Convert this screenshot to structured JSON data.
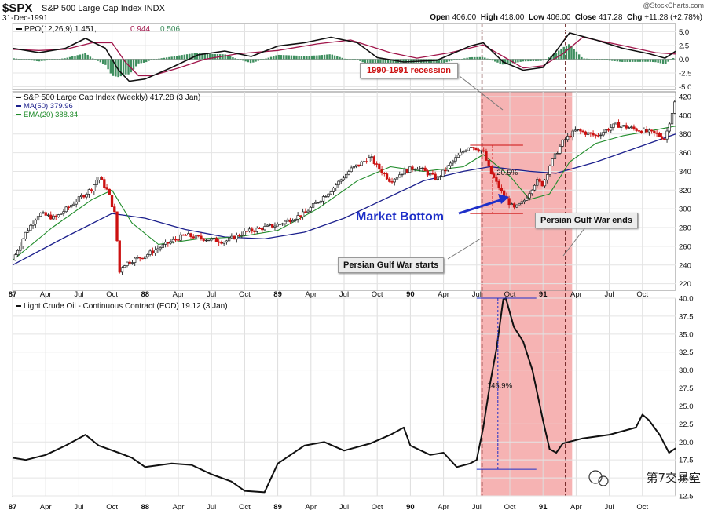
{
  "header": {
    "symbol": "$SPX",
    "name": "S&P 500 Large Cap Index INDX",
    "date": "31-Dec-1991",
    "copyright": "@StockCharts.com",
    "open_label": "Open",
    "open": "406.00",
    "high_label": "High",
    "high": "418.00",
    "low_label": "Low",
    "low": "406.00",
    "close_label": "Close",
    "close": "417.28",
    "chg_label": "Chg",
    "chg": "+11.28 (+2.78%)"
  },
  "annotations": {
    "recession": "1990-1991 recession",
    "market_bottom": "Market Bottom",
    "war_starts": "Persian Gulf War starts",
    "war_ends": "Persian Gulf War ends",
    "drop_pct": "-20.5%",
    "oil_rise_pct": "146.9%",
    "watermark": "第7交易室"
  },
  "colors": {
    "recession_fill": "#f4a6a6",
    "candle_up": "#222222",
    "candle_down": "#cc1111",
    "ma50": "#1b1f8c",
    "ema20": "#1f8c2a",
    "ppo": "#111111",
    "ppo_signal": "#a0154a",
    "histogram": "#3e8e5e",
    "arrow": "#1e2fc8",
    "oil": "#111111"
  },
  "x_axis": [
    "87",
    "Apr",
    "Jul",
    "Oct",
    "88",
    "Apr",
    "Jul",
    "Oct",
    "89",
    "Apr",
    "Jul",
    "Oct",
    "90",
    "Apr",
    "Jul",
    "Oct",
    "91",
    "Apr",
    "Jul",
    "Oct"
  ],
  "chart_data": [
    {
      "type": "line",
      "title": "PPO(12,26,9) 1.451, 0.944, 0.506",
      "legend": [
        {
          "label": "PPO(12,26,9)",
          "value": "1.451"
        },
        {
          "label": "",
          "value": "0.944"
        },
        {
          "label": "",
          "value": "0.506"
        }
      ],
      "ylim": [
        -5.5,
        6.5
      ],
      "yticks": [
        "5.0",
        "2.5",
        "0.0",
        "-2.5",
        "-5.0"
      ],
      "series": [
        {
          "name": "PPO",
          "x": [
            1987.0,
            1987.2,
            1987.4,
            1987.55,
            1987.7,
            1987.8,
            1987.88,
            1988.0,
            1988.2,
            1988.4,
            1988.6,
            1988.8,
            1989.0,
            1989.2,
            1989.4,
            1989.6,
            1989.75,
            1989.95,
            1990.2,
            1990.45,
            1990.55,
            1990.7,
            1990.85,
            1991.0,
            1991.1,
            1991.2,
            1991.4,
            1991.6,
            1991.8,
            1991.92,
            1992.0
          ],
          "values": [
            2.0,
            1.2,
            2.0,
            3.8,
            2.0,
            -2.0,
            -4.0,
            -3.6,
            -1.5,
            0.8,
            1.5,
            0.5,
            2.4,
            3.0,
            4.0,
            3.0,
            0.3,
            -0.5,
            -0.2,
            2.4,
            3.0,
            -0.5,
            -2.0,
            -1.5,
            1.5,
            4.8,
            3.5,
            2.0,
            1.0,
            0.2,
            1.451
          ]
        },
        {
          "name": "Signal",
          "x": [
            1987.0,
            1987.2,
            1987.4,
            1987.6,
            1987.75,
            1987.85,
            1987.95,
            1988.05,
            1988.25,
            1988.45,
            1988.7,
            1989.0,
            1989.3,
            1989.55,
            1989.85,
            1990.05,
            1990.3,
            1990.55,
            1990.7,
            1990.85,
            1991.0,
            1991.15,
            1991.3,
            1991.6,
            1991.85,
            1992.0
          ],
          "values": [
            1.8,
            1.6,
            1.8,
            3.0,
            3.0,
            -0.5,
            -3.0,
            -3.0,
            -1.6,
            0.0,
            1.0,
            1.6,
            2.8,
            3.5,
            1.2,
            0.2,
            1.2,
            2.6,
            0.5,
            -1.6,
            -1.2,
            1.0,
            4.0,
            2.5,
            1.2,
            0.944
          ]
        }
      ],
      "histogram_last": "0.506"
    },
    {
      "type": "candlestick",
      "title": "S&P 500 Large Cap Index (Weekly) 417.28 (3 Jan)",
      "legend": [
        {
          "label": "MA(50)",
          "value": "379.96"
        },
        {
          "label": "EMA(20)",
          "value": "388.34"
        }
      ],
      "ylim": [
        213,
        425
      ],
      "yticks": [
        "420",
        "400",
        "380",
        "360",
        "340",
        "320",
        "300",
        "280",
        "260",
        "240",
        "220"
      ],
      "close_x": [
        1987.0,
        1987.1,
        1987.2,
        1987.32,
        1987.45,
        1987.6,
        1987.65,
        1987.72,
        1987.78,
        1987.8,
        1987.83,
        1987.9,
        1988.0,
        1988.15,
        1988.3,
        1988.45,
        1988.6,
        1988.75,
        1988.9,
        1989.0,
        1989.2,
        1989.4,
        1989.55,
        1989.7,
        1989.75,
        1989.85,
        1989.95,
        1990.05,
        1990.2,
        1990.35,
        1990.45,
        1990.55,
        1990.6,
        1990.7,
        1990.78,
        1990.85,
        1990.95,
        1991.0,
        1991.05,
        1991.15,
        1991.25,
        1991.4,
        1991.55,
        1991.7,
        1991.85,
        1991.92,
        1992.0
      ],
      "close": [
        245,
        275,
        295,
        290,
        305,
        322,
        335,
        318,
        290,
        230,
        240,
        245,
        250,
        262,
        272,
        268,
        265,
        275,
        280,
        283,
        295,
        320,
        342,
        355,
        345,
        330,
        340,
        345,
        332,
        355,
        368,
        361,
        340,
        315,
        300,
        307,
        330,
        326,
        346,
        372,
        384,
        378,
        390,
        385,
        380,
        375,
        417.28
      ],
      "ma50_x": [
        1987.0,
        1987.4,
        1987.75,
        1988.0,
        1988.3,
        1988.6,
        1988.9,
        1989.2,
        1989.5,
        1989.8,
        1990.1,
        1990.4,
        1990.6,
        1990.9,
        1991.1,
        1991.4,
        1991.7,
        1992.0
      ],
      "ma50": [
        240,
        270,
        295,
        290,
        278,
        270,
        268,
        275,
        290,
        310,
        330,
        340,
        345,
        340,
        338,
        350,
        365,
        379.96
      ],
      "ema20_x": [
        1987.0,
        1987.3,
        1987.6,
        1987.75,
        1987.9,
        1988.1,
        1988.4,
        1988.7,
        1989.0,
        1989.3,
        1989.6,
        1989.85,
        1990.1,
        1990.4,
        1990.55,
        1990.75,
        1990.9,
        1991.05,
        1991.2,
        1991.4,
        1991.6,
        1991.8,
        1992.0
      ],
      "ema20": [
        245,
        280,
        310,
        320,
        285,
        262,
        268,
        270,
        277,
        300,
        330,
        345,
        340,
        345,
        358,
        335,
        310,
        316,
        350,
        370,
        378,
        383,
        388.34
      ]
    },
    {
      "type": "line",
      "title": "Light Crude Oil - Continuous Contract (EOD) 19.12 (3 Jan)",
      "ylim": [
        12.5,
        40.0
      ],
      "yticks": [
        "40.0",
        "37.5",
        "35.0",
        "32.5",
        "30.0",
        "27.5",
        "25.0",
        "22.5",
        "20.0",
        "17.5",
        "15.0",
        "12.5"
      ],
      "series": [
        {
          "name": "Light Crude Oil",
          "x": [
            1987.0,
            1987.1,
            1987.25,
            1987.4,
            1987.55,
            1987.65,
            1987.8,
            1987.9,
            1988.0,
            1988.2,
            1988.35,
            1988.5,
            1988.65,
            1988.75,
            1988.9,
            1989.0,
            1989.2,
            1989.35,
            1989.5,
            1989.7,
            1989.85,
            1989.95,
            1990.0,
            1990.15,
            1990.25,
            1990.35,
            1990.45,
            1990.5,
            1990.55,
            1990.6,
            1990.65,
            1990.7,
            1990.72,
            1990.78,
            1990.85,
            1990.92,
            1991.0,
            1991.05,
            1991.1,
            1991.15,
            1991.3,
            1991.5,
            1991.6,
            1991.7,
            1991.75,
            1991.8,
            1991.88,
            1991.95,
            1992.0
          ],
          "values": [
            17.8,
            17.5,
            18.2,
            19.5,
            21.0,
            19.5,
            18.5,
            17.8,
            16.5,
            17.0,
            16.8,
            15.5,
            14.5,
            13.2,
            13.0,
            17.0,
            19.5,
            20.0,
            18.8,
            19.8,
            21.0,
            22.0,
            19.5,
            18.2,
            18.5,
            16.5,
            17.0,
            17.5,
            22.0,
            28.0,
            33.0,
            39.8,
            40.0,
            36.0,
            34.0,
            30.0,
            23.0,
            19.0,
            18.5,
            19.8,
            20.5,
            21.0,
            21.5,
            22.0,
            23.8,
            23.0,
            21.0,
            18.5,
            19.12
          ]
        }
      ]
    }
  ]
}
